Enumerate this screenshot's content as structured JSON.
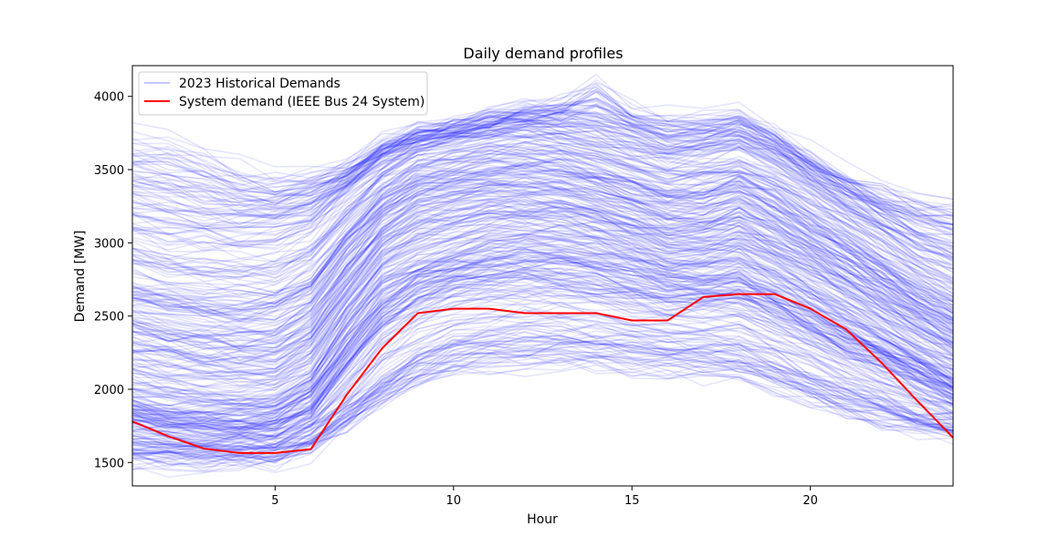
{
  "chart_data": {
    "type": "line",
    "title": "Daily demand profiles",
    "xlabel": "Hour",
    "ylabel": "Demand [MW]",
    "xlim": [
      1,
      24
    ],
    "ylim": [
      1340,
      4210
    ],
    "xticks": [
      5,
      10,
      15,
      20
    ],
    "yticks": [
      1500,
      2000,
      2500,
      3000,
      3500,
      4000
    ],
    "grid": false,
    "legend_position": "top-left",
    "colors": {
      "historical": "#0000ff",
      "system": "#ff0000"
    },
    "x": [
      1,
      2,
      3,
      4,
      5,
      6,
      7,
      8,
      9,
      10,
      11,
      12,
      13,
      14,
      15,
      16,
      17,
      18,
      19,
      20,
      21,
      22,
      23,
      24
    ],
    "series": [
      {
        "name": "2023 Historical Demands",
        "style": "faint-ensemble",
        "count": 365,
        "representative_profiles": [
          [
            1480,
            1470,
            1470,
            1480,
            1490,
            1560,
            1720,
            1900,
            2030,
            2100,
            2130,
            2140,
            2140,
            2130,
            2110,
            2090,
            2080,
            2060,
            1990,
            1900,
            1820,
            1760,
            1720,
            1680
          ],
          [
            1620,
            1600,
            1590,
            1590,
            1600,
            1680,
            1850,
            2050,
            2200,
            2300,
            2350,
            2370,
            2370,
            2350,
            2320,
            2290,
            2280,
            2270,
            2180,
            2080,
            1980,
            1900,
            1820,
            1760
          ],
          [
            1780,
            1740,
            1720,
            1710,
            1720,
            1850,
            2150,
            2450,
            2620,
            2700,
            2740,
            2750,
            2740,
            2700,
            2650,
            2600,
            2600,
            2620,
            2520,
            2400,
            2280,
            2180,
            2070,
            1960
          ],
          [
            1950,
            1900,
            1880,
            1880,
            1900,
            2050,
            2400,
            2700,
            2820,
            2900,
            2960,
            2990,
            2990,
            2950,
            2890,
            2820,
            2800,
            2830,
            2720,
            2590,
            2460,
            2330,
            2200,
            2080
          ],
          [
            2300,
            2250,
            2220,
            2200,
            2210,
            2350,
            2700,
            3000,
            3150,
            3200,
            3250,
            3260,
            3250,
            3200,
            3130,
            3050,
            3050,
            3100,
            3000,
            2870,
            2740,
            2600,
            2450,
            2330
          ],
          [
            2700,
            2650,
            2620,
            2600,
            2620,
            2750,
            3050,
            3300,
            3450,
            3500,
            3550,
            3560,
            3540,
            3480,
            3400,
            3330,
            3350,
            3420,
            3300,
            3150,
            3000,
            2850,
            2700,
            2560
          ],
          [
            3200,
            3150,
            3120,
            3100,
            3120,
            3200,
            3400,
            3600,
            3700,
            3750,
            3800,
            3820,
            3800,
            3750,
            3680,
            3620,
            3650,
            3700,
            3600,
            3450,
            3300,
            3150,
            3000,
            2900
          ],
          [
            3720,
            3720,
            3600,
            3500,
            3450,
            3450,
            3500,
            3650,
            3750,
            3800,
            3850,
            3900,
            3950,
            4070,
            3900,
            3850,
            3850,
            3880,
            3750,
            3600,
            3450,
            3350,
            3300,
            3250
          ]
        ]
      },
      {
        "name": "System demand (IEEE Bus 24 System)",
        "values": [
          1780,
          1680,
          1595,
          1565,
          1565,
          1590,
          1960,
          2280,
          2520,
          2550,
          2550,
          2520,
          2520,
          2520,
          2470,
          2470,
          2630,
          2650,
          2650,
          2550,
          2410,
          2180,
          1920,
          1670
        ]
      }
    ]
  }
}
